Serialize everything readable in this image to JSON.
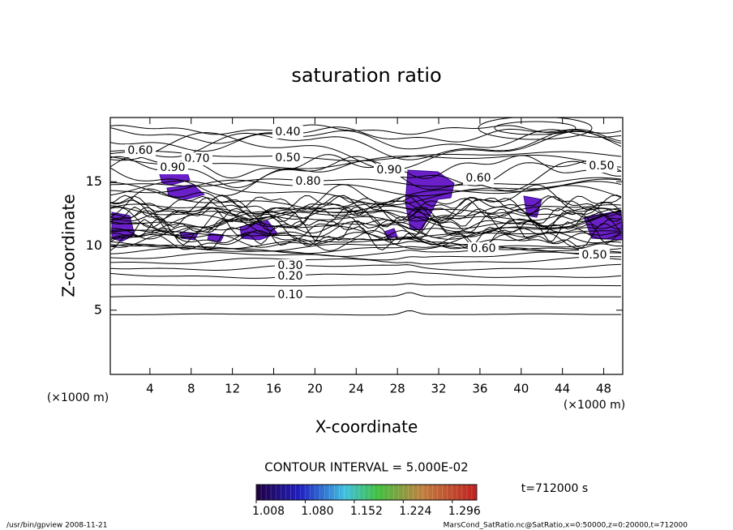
{
  "chart_data": {
    "type": "contour",
    "title": "saturation ratio",
    "xlabel": "X-coordinate",
    "ylabel": "Z-coordinate",
    "xunit": "(×1000 m)",
    "yunit": "(×1000 m)",
    "xlim": [
      0,
      50
    ],
    "ylim": [
      0,
      20
    ],
    "xticks": [
      4,
      8,
      12,
      16,
      20,
      24,
      28,
      32,
      36,
      40,
      44,
      48
    ],
    "yticks": [
      5,
      10,
      15
    ],
    "contour_labels": [
      {
        "value": 0.4,
        "label": "0.40"
      },
      {
        "value": 0.5,
        "label": "0.50"
      },
      {
        "value": 0.6,
        "label": "0.60"
      },
      {
        "value": 0.7,
        "label": "0.70"
      },
      {
        "value": 0.9,
        "label": "0.90"
      },
      {
        "value": 0.8,
        "label": "0.80"
      },
      {
        "value": 0.9,
        "label": "0.90"
      },
      {
        "value": 0.6,
        "label": "0.60"
      },
      {
        "value": 0.5,
        "label": "0.50"
      },
      {
        "value": 0.3,
        "label": "0.30"
      },
      {
        "value": 0.2,
        "label": "0.20"
      },
      {
        "value": 0.1,
        "label": "0.10"
      },
      {
        "value": 0.6,
        "label": "0.60"
      },
      {
        "value": 0.5,
        "label": "0.50"
      }
    ],
    "contour_interval_text": "CONTOUR INTERVAL = 5.000E-02",
    "colorbar_ticks": [
      {
        "value": 1.008,
        "label": "1.008"
      },
      {
        "value": 1.08,
        "label": "1.080"
      },
      1.152,
      1.224,
      1.296
    ],
    "colorbar_lim": [
      1.008,
      1.332
    ],
    "time_text": "t=712000 s",
    "footer_left": "/usr/bin/gpview  2008-11-21",
    "footer_right": "MarsCond_SatRatio.nc@SatRatio,x=0:50000,z=0:20000,t=712000"
  }
}
